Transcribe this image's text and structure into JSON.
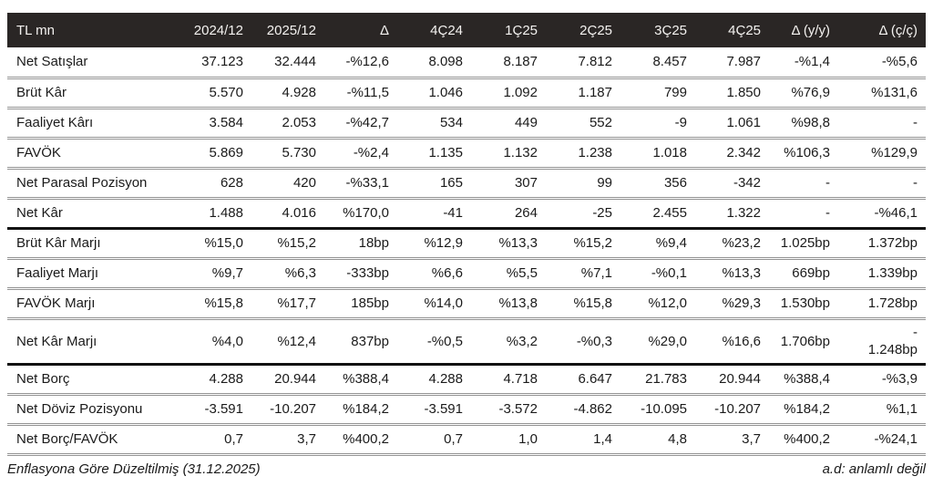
{
  "colors": {
    "header_bg": "#2a2625",
    "header_text": "#f4f2f0",
    "body_text": "#1a1a1a",
    "row_divider": "#939393",
    "section_divider": "#121212",
    "page_bg": "#ffffff"
  },
  "table": {
    "columns": [
      "TL mn",
      "2024/12",
      "2025/12",
      "Δ",
      "4Ç24",
      "1Ç25",
      "2Ç25",
      "3Ç25",
      "4Ç25",
      "Δ (y/y)",
      "Δ (ç/ç)"
    ],
    "rows": [
      {
        "label": "Net Satışlar",
        "values": [
          "37.123",
          "32.444",
          "-%12,6",
          "8.098",
          "8.187",
          "7.812",
          "8.457",
          "7.987",
          "-%1,4",
          "-%5,6"
        ],
        "section_end": false,
        "tall": false
      },
      {
        "label": "Brüt Kâr",
        "values": [
          "5.570",
          "4.928",
          "-%11,5",
          "1.046",
          "1.092",
          "1.187",
          "799",
          "1.850",
          "%76,9",
          "%131,6"
        ],
        "section_end": false,
        "tall": false
      },
      {
        "label": "Faaliyet Kârı",
        "values": [
          "3.584",
          "2.053",
          "-%42,7",
          "534",
          "449",
          "552",
          "-9",
          "1.061",
          "%98,8",
          "-"
        ],
        "section_end": false,
        "tall": false
      },
      {
        "label": "FAVÖK",
        "values": [
          "5.869",
          "5.730",
          "-%2,4",
          "1.135",
          "1.132",
          "1.238",
          "1.018",
          "2.342",
          "%106,3",
          "%129,9"
        ],
        "section_end": false,
        "tall": false
      },
      {
        "label": "Net Parasal Pozisyon",
        "values": [
          "628",
          "420",
          "-%33,1",
          "165",
          "307",
          "99",
          "356",
          "-342",
          "-",
          "-"
        ],
        "section_end": false,
        "tall": false
      },
      {
        "label": "Net Kâr",
        "values": [
          "1.488",
          "4.016",
          "%170,0",
          "-41",
          "264",
          "-25",
          "2.455",
          "1.322",
          "-",
          "-%46,1"
        ],
        "section_end": true,
        "tall": false
      },
      {
        "label": "Brüt Kâr Marjı",
        "values": [
          "%15,0",
          "%15,2",
          "18bp",
          "%12,9",
          "%13,3",
          "%15,2",
          "%9,4",
          "%23,2",
          "1.025bp",
          "1.372bp"
        ],
        "section_end": false,
        "tall": false
      },
      {
        "label": "Faaliyet Marjı",
        "values": [
          "%9,7",
          "%6,3",
          "-333bp",
          "%6,6",
          "%5,5",
          "%7,1",
          "-%0,1",
          "%13,3",
          "669bp",
          "1.339bp"
        ],
        "section_end": false,
        "tall": false
      },
      {
        "label": "FAVÖK Marjı",
        "values": [
          "%15,8",
          "%17,7",
          "185bp",
          "%14,0",
          "%13,8",
          "%15,8",
          "%12,0",
          "%29,3",
          "1.530bp",
          "1.728bp"
        ],
        "section_end": false,
        "tall": false
      },
      {
        "label": "Net Kâr Marjı",
        "values": [
          "%4,0",
          "%12,4",
          "837bp",
          "-%0,5",
          "%3,2",
          "-%0,3",
          "%29,0",
          "%16,6",
          "1.706bp",
          "-\n1.248bp"
        ],
        "section_end": true,
        "tall": true
      },
      {
        "label": "Net Borç",
        "values": [
          "4.288",
          "20.944",
          "%388,4",
          "4.288",
          "4.718",
          "6.647",
          "21.783",
          "20.944",
          "%388,4",
          "-%3,9"
        ],
        "section_end": false,
        "tall": false
      },
      {
        "label": "Net Döviz Pozisyonu",
        "values": [
          "-3.591",
          "-10.207",
          "%184,2",
          "-3.591",
          "-3.572",
          "-4.862",
          "-10.095",
          "-10.207",
          "%184,2",
          "%1,1"
        ],
        "section_end": false,
        "tall": false
      },
      {
        "label": "Net Borç/FAVÖK",
        "values": [
          "0,7",
          "3,7",
          "%400,2",
          "0,7",
          "1,0",
          "1,4",
          "4,8",
          "3,7",
          "%400,2",
          "-%24,1"
        ],
        "section_end": false,
        "tall": false
      }
    ],
    "footnote_left": "Enflasyona Göre Düzeltilmiş (31.12.2025)",
    "footnote_right": "a.d: anlamlı değil"
  }
}
